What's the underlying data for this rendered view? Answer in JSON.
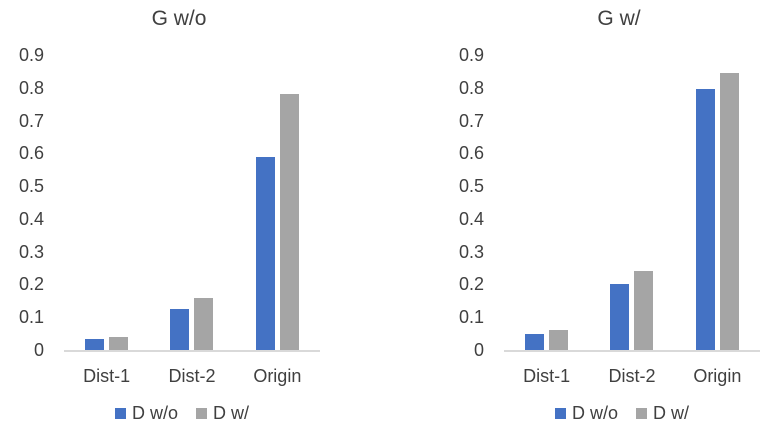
{
  "colors": {
    "series_blue": "#4472C4",
    "series_gray": "#A5A5A5",
    "axis_line": "#D9D9D9",
    "text": "#404040",
    "background": "#FFFFFF"
  },
  "chart_data": [
    {
      "type": "bar",
      "title": "G w/o",
      "categories": [
        "Dist-1",
        "Dist-2",
        "Origin"
      ],
      "series": [
        {
          "name": "D w/o",
          "color": "#4472C4",
          "values": [
            0.035,
            0.125,
            0.59
          ]
        },
        {
          "name": "D w/",
          "color": "#A5A5A5",
          "values": [
            0.04,
            0.16,
            0.78
          ]
        }
      ],
      "xlabel": "",
      "ylabel": "",
      "ylim": [
        0,
        0.9
      ],
      "yticks": [
        0,
        0.1,
        0.2,
        0.3,
        0.4,
        0.5,
        0.6,
        0.7,
        0.8,
        0.9
      ],
      "grid": false,
      "legend_position": "bottom"
    },
    {
      "type": "bar",
      "title": "G w/",
      "categories": [
        "Dist-1",
        "Dist-2",
        "Origin"
      ],
      "series": [
        {
          "name": "D w/o",
          "color": "#4472C4",
          "values": [
            0.05,
            0.2,
            0.795
          ]
        },
        {
          "name": "D w/",
          "color": "#A5A5A5",
          "values": [
            0.06,
            0.24,
            0.845
          ]
        }
      ],
      "xlabel": "",
      "ylabel": "",
      "ylim": [
        0,
        0.9
      ],
      "yticks": [
        0,
        0.1,
        0.2,
        0.3,
        0.4,
        0.5,
        0.6,
        0.7,
        0.8,
        0.9
      ],
      "grid": false,
      "legend_position": "bottom"
    }
  ]
}
